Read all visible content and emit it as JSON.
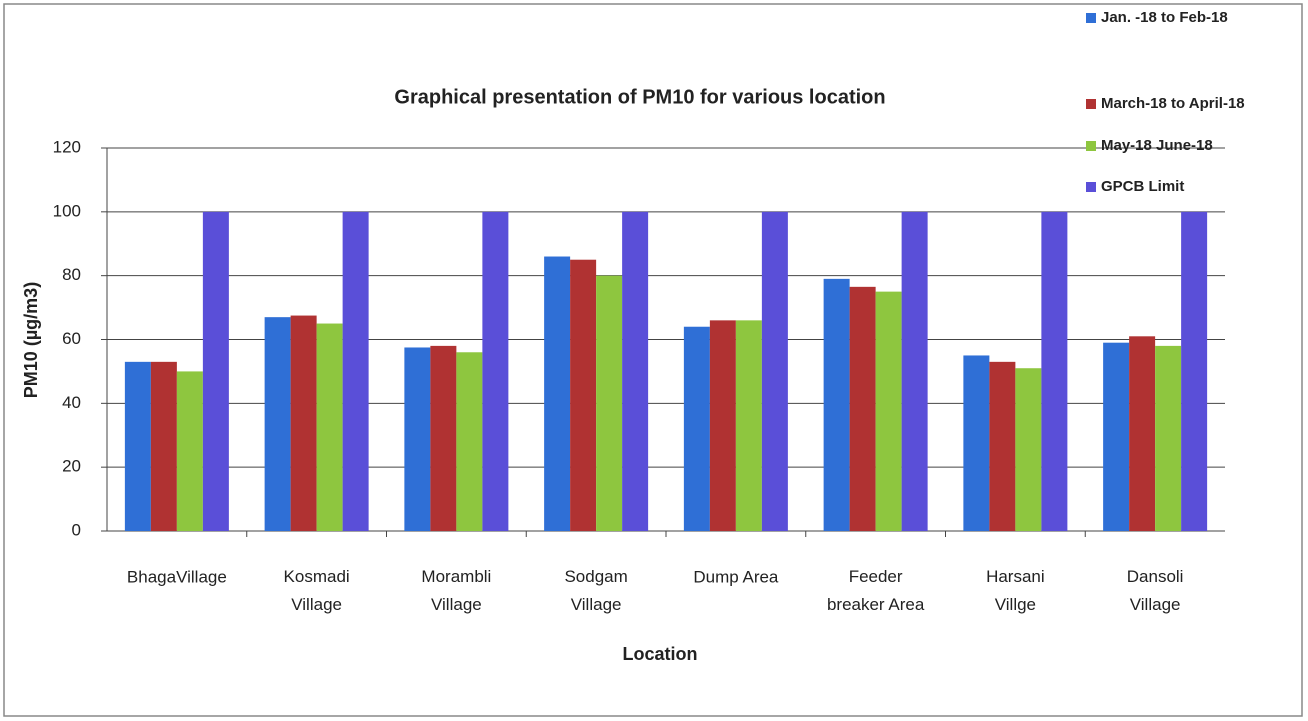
{
  "chart_data": {
    "type": "bar",
    "title": "Graphical presentation of PM10 for various location",
    "x_label": "Location",
    "y_label": "PM10 (µg/m3)",
    "categories": [
      "BhagaVillage",
      "Kosmadi\nVillage",
      "Morambli\nVillage",
      "Sodgam\nVillage",
      "Dump Area",
      "Feeder\nbreaker Area",
      "Harsani\nVillge",
      "Dansoli\nVillage"
    ],
    "series": [
      {
        "name": "Jan. -18 to Feb-18",
        "color": "#2f6fd6",
        "values": [
          53,
          67,
          57.5,
          86,
          64,
          79,
          55,
          59
        ]
      },
      {
        "name": "March-18 to April-18",
        "color": "#b03232",
        "values": [
          53,
          67.5,
          58,
          85,
          66,
          76.5,
          53,
          61
        ]
      },
      {
        "name": "May-18 June-18",
        "color": "#8ec63f",
        "values": [
          50,
          65,
          56,
          80,
          66,
          75,
          51,
          58
        ]
      },
      {
        "name": "GPCB Limit",
        "color": "#5a4fd8",
        "values": [
          100,
          100,
          100,
          100,
          100,
          100,
          100,
          100
        ]
      }
    ],
    "ylim": [
      0,
      120
    ],
    "yticks": [
      0,
      20,
      40,
      60,
      80,
      100,
      120
    ],
    "grid": true,
    "legend": "right"
  }
}
